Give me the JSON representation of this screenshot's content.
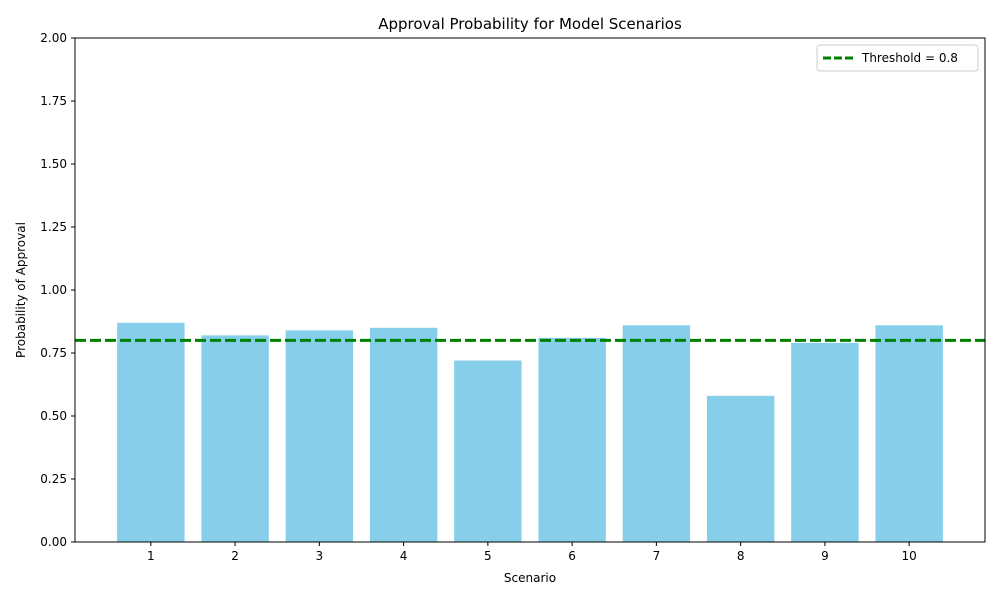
{
  "chart_data": {
    "type": "bar",
    "title": "Approval Probability for Model Scenarios",
    "xlabel": "Scenario",
    "ylabel": "Probability of Approval",
    "categories": [
      "1",
      "2",
      "3",
      "4",
      "5",
      "6",
      "7",
      "8",
      "9",
      "10"
    ],
    "values": [
      0.87,
      0.82,
      0.84,
      0.85,
      0.72,
      0.81,
      0.86,
      0.58,
      0.79,
      0.86
    ],
    "ylim": [
      0,
      2.0
    ],
    "yticks": [
      "0.00",
      "0.25",
      "0.50",
      "0.75",
      "1.00",
      "1.25",
      "1.50",
      "1.75",
      "2.00"
    ],
    "ytick_values": [
      0,
      0.25,
      0.5,
      0.75,
      1.0,
      1.25,
      1.5,
      1.75,
      2.0
    ],
    "bar_color": "#87CEEB",
    "threshold": {
      "value": 0.8,
      "label": "Threshold = 0.8",
      "color": "#008000",
      "style": "dashed"
    },
    "legend_position": "top-right",
    "grid": false
  }
}
